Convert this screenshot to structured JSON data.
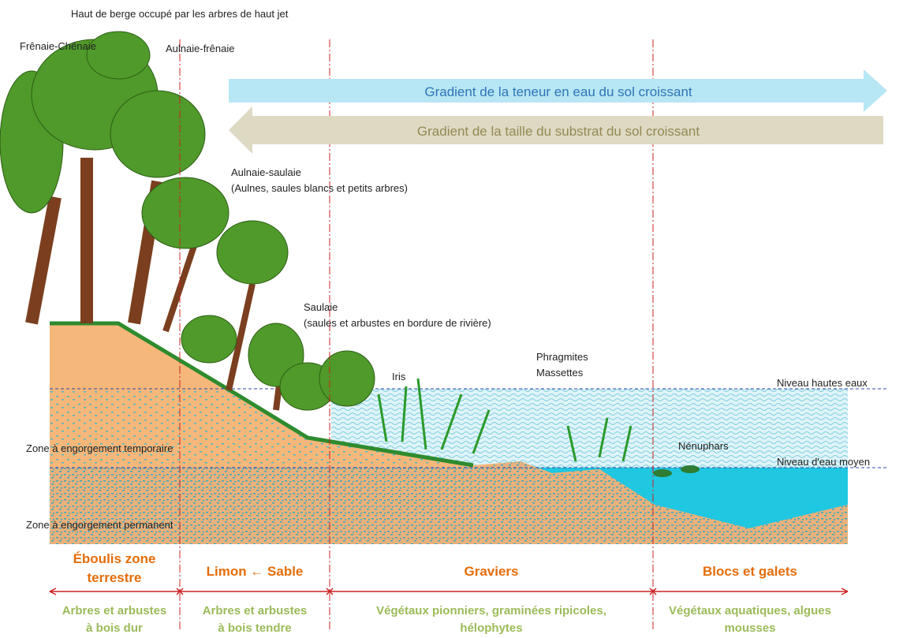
{
  "caption": "Haut de berge occupé par les arbres de haut jet",
  "trees": {
    "frenaie_chenaie": "Frênaie-Chênaie",
    "aulnaie_frenaie": "Aulnaie-frênaie",
    "aulnaie_saulaie": [
      "Aulnaie-saulaie",
      "(Aulnes, saules blancs et petits arbres)"
    ],
    "saulaie": [
      "Saulaie",
      "(saules et arbustes en bordure de rivière)"
    ]
  },
  "plants": {
    "iris": "Iris",
    "phragmites": [
      "Phragmites",
      "Massettes"
    ],
    "nenuphars": "Nénuphars"
  },
  "gradients": [
    "Gradient de la teneur en eau du sol croissant",
    "Gradient de la taille du substrat du sol croissant"
  ],
  "levels": {
    "high": "Niveau hautes eaux",
    "mean": "Niveau d'eau moyen"
  },
  "soil_zones": {
    "temporary": "Zone à engorgement temporaire",
    "permanent": "Zone à engorgement permanent"
  },
  "zones": [
    {
      "substrate": [
        "Éboulis zone",
        "terrestre"
      ],
      "vegetation": [
        "Arbres et arbustes",
        "à bois dur"
      ]
    },
    {
      "substrate": [
        "Limon ← Sable"
      ],
      "vegetation": [
        "Arbres et arbustes",
        "à bois tendre"
      ]
    },
    {
      "substrate": [
        "Graviers"
      ],
      "vegetation": [
        "Végétaux pionniers, graminées ripicoles,",
        "hélophytes"
      ]
    },
    {
      "substrate": [
        "Blocs et galets"
      ],
      "vegetation": [
        "Végétaux aquatiques, algues",
        "mousses"
      ]
    }
  ]
}
